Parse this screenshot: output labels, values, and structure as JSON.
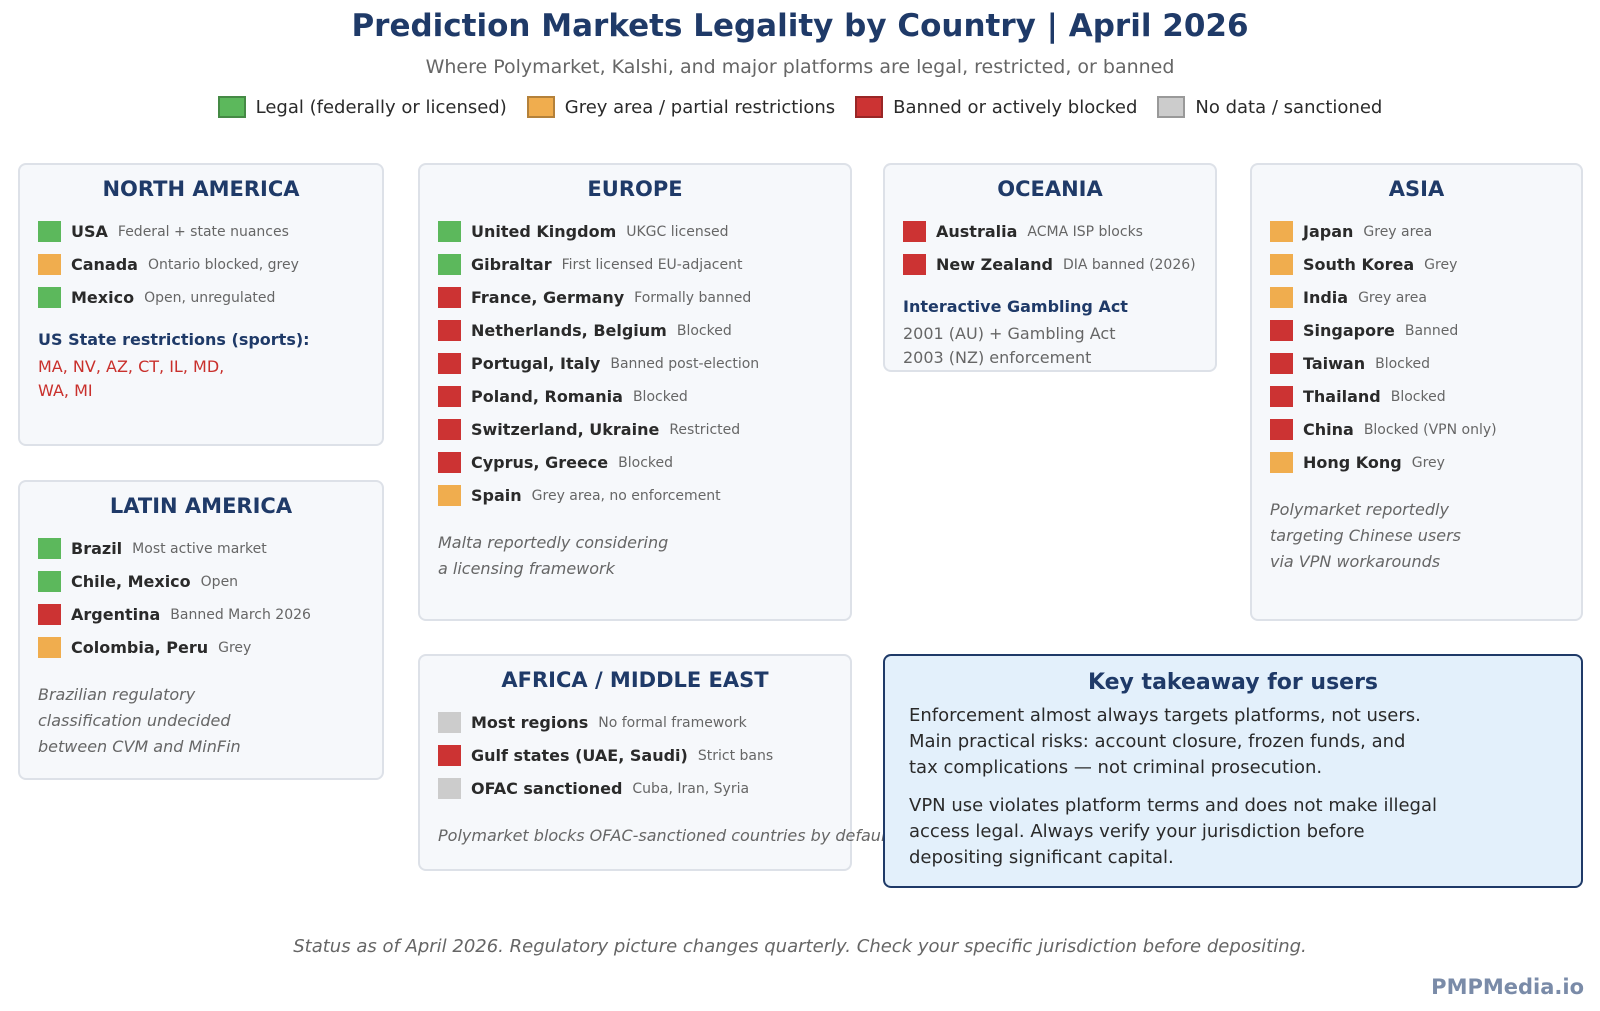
{
  "header": {
    "title": "Prediction Markets Legality by Country | April 2026",
    "subtitle": "Where Polymarket, Kalshi, and major platforms are legal, restricted, or banned"
  },
  "legend": [
    {
      "label": "Legal (federally or licensed)",
      "color": "#5cb85c"
    },
    {
      "label": "Grey area / partial restrictions",
      "color": "#f0ad4e"
    },
    {
      "label": "Banned or actively blocked",
      "color": "#cc3333"
    },
    {
      "label": "No data / sanctioned",
      "color": "#cccccc"
    }
  ],
  "panels": [
    {
      "title": "NORTH AMERICA",
      "entries": [
        {
          "name": "USA",
          "note": "Federal + state nuances",
          "color": "#5cb85c"
        },
        {
          "name": "Canada",
          "note": "Ontario blocked, grey",
          "color": "#f0ad4e"
        },
        {
          "name": "Mexico",
          "note": "Open, unregulated",
          "color": "#5cb85c"
        }
      ],
      "subheading": "US State restrictions (sports):",
      "detail_lines": [
        "MA, NV, AZ, CT, IL, MD,",
        "WA, MI"
      ],
      "detail_color": "#c9302c"
    },
    {
      "title": "LATIN AMERICA",
      "entries": [
        {
          "name": "Brazil",
          "note": "Most active market",
          "color": "#5cb85c"
        },
        {
          "name": "Chile, Mexico",
          "note": "Open",
          "color": "#5cb85c"
        },
        {
          "name": "Argentina",
          "note": "Banned March 2026",
          "color": "#cc3333"
        },
        {
          "name": "Colombia, Peru",
          "note": "Grey",
          "color": "#f0ad4e"
        }
      ],
      "note_lines": [
        "Brazilian regulatory",
        "classification undecided",
        "between CVM and MinFin"
      ]
    },
    {
      "title": "EUROPE",
      "entries": [
        {
          "name": "United Kingdom",
          "note": "UKGC licensed",
          "color": "#5cb85c"
        },
        {
          "name": "Gibraltar",
          "note": "First licensed EU-adjacent",
          "color": "#5cb85c"
        },
        {
          "name": "France, Germany",
          "note": "Formally banned",
          "color": "#cc3333"
        },
        {
          "name": "Netherlands, Belgium",
          "note": "Blocked",
          "color": "#cc3333"
        },
        {
          "name": "Portugal, Italy",
          "note": "Banned post-election",
          "color": "#cc3333"
        },
        {
          "name": "Poland, Romania",
          "note": "Blocked",
          "color": "#cc3333"
        },
        {
          "name": "Switzerland, Ukraine",
          "note": "Restricted",
          "color": "#cc3333"
        },
        {
          "name": "Cyprus, Greece",
          "note": "Blocked",
          "color": "#cc3333"
        },
        {
          "name": "Spain",
          "note": "Grey area, no enforcement",
          "color": "#f0ad4e"
        }
      ],
      "note_lines": [
        "Malta reportedly considering",
        "a licensing framework"
      ]
    },
    {
      "title": "AFRICA / MIDDLE EAST",
      "entries": [
        {
          "name": "Most regions",
          "note": "No formal framework",
          "color": "#cccccc"
        },
        {
          "name": "Gulf states (UAE, Saudi)",
          "note": "Strict bans",
          "color": "#cc3333"
        },
        {
          "name": "OFAC sanctioned",
          "note": "Cuba, Iran, Syria",
          "color": "#cccccc"
        }
      ],
      "note_lines": [
        "Polymarket blocks OFAC-sanctioned countries by default"
      ]
    },
    {
      "title": "OCEANIA",
      "entries": [
        {
          "name": "Australia",
          "note": "ACMA ISP blocks",
          "color": "#cc3333"
        },
        {
          "name": "New Zealand",
          "note": "DIA banned (2026)",
          "color": "#cc3333"
        }
      ],
      "subheading": "Interactive Gambling Act",
      "detail_lines": [
        "2001 (AU) + Gambling Act",
        "2003 (NZ) enforcement"
      ],
      "detail_color": "#666666"
    },
    {
      "title": "ASIA",
      "entries": [
        {
          "name": "Japan",
          "note": "Grey area",
          "color": "#f0ad4e"
        },
        {
          "name": "South Korea",
          "note": "Grey",
          "color": "#f0ad4e"
        },
        {
          "name": "India",
          "note": "Grey area",
          "color": "#f0ad4e"
        },
        {
          "name": "Singapore",
          "note": "Banned",
          "color": "#cc3333"
        },
        {
          "name": "Taiwan",
          "note": "Blocked",
          "color": "#cc3333"
        },
        {
          "name": "Thailand",
          "note": "Blocked",
          "color": "#cc3333"
        },
        {
          "name": "China",
          "note": "Blocked (VPN only)",
          "color": "#cc3333"
        },
        {
          "name": "Hong Kong",
          "note": "Grey",
          "color": "#f0ad4e"
        }
      ],
      "note_lines": [
        "Polymarket reportedly",
        "targeting Chinese users",
        "via VPN workarounds"
      ]
    }
  ],
  "takeaway": {
    "title": "Key takeaway for users",
    "paragraphs": [
      [
        "Enforcement almost always targets platforms, not users.",
        "Main practical risks: account closure, frozen funds, and",
        "tax complications — not criminal prosecution."
      ],
      [
        "VPN use violates platform terms and does not make illegal",
        "access legal. Always verify your jurisdiction before",
        "depositing significant capital."
      ]
    ]
  },
  "footer": {
    "note": "Status as of April 2026. Regulatory picture changes quarterly. Check your specific jurisdiction before depositing.",
    "brand": "PMPMedia.io"
  }
}
